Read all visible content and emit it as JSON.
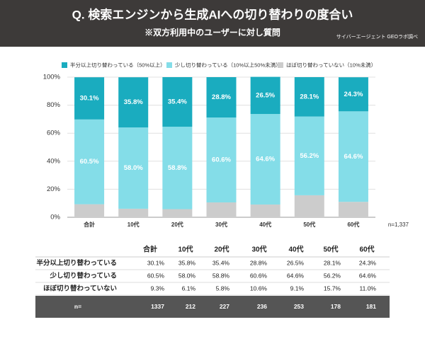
{
  "chart_data": {
    "type": "stacked_bar",
    "title": "Q. 検索エンジンから生成AIへの切り替わりの度合い",
    "subtitle": "※双方利用中のユーザーに対し質問",
    "source": "サイバーエージェント GEOラボ調べ",
    "note": "n=1,337",
    "categories": [
      "合計",
      "10代",
      "20代",
      "30代",
      "40代",
      "50代",
      "60代"
    ],
    "series": [
      {
        "name": "ほぼ切り替わっていない（10%未満）",
        "color": "#cccccc",
        "values": [
          9.3,
          6.1,
          5.8,
          10.6,
          9.1,
          15.7,
          11.0
        ],
        "value_labels": [
          "9.3%",
          "6.1%",
          "5.8%",
          "10.6%",
          "9.1%",
          "15.7%",
          "11.0%"
        ]
      },
      {
        "name": "少し切り替わっている（10%以上50%未満）",
        "color": "#84dde8",
        "values": [
          60.5,
          58.0,
          58.8,
          60.6,
          64.6,
          56.2,
          64.6
        ],
        "value_labels": [
          "60.5%",
          "58.0%",
          "58.8%",
          "60.6%",
          "64.6%",
          "56.2%",
          "64.6%"
        ]
      },
      {
        "name": "半分以上切り替わっている（50%以上）",
        "color": "#1aacbf",
        "values": [
          30.1,
          35.8,
          35.4,
          28.8,
          26.5,
          28.1,
          24.3
        ],
        "value_labels": [
          "30.1%",
          "35.8%",
          "35.4%",
          "28.8%",
          "26.5%",
          "28.1%",
          "24.3%"
        ]
      }
    ],
    "ylim": [
      0,
      100
    ],
    "yticks": [
      {
        "value": 0,
        "label": "0%"
      },
      {
        "value": 20,
        "label": "20%"
      },
      {
        "value": 40,
        "label": "40%"
      },
      {
        "value": 60,
        "label": "60%"
      },
      {
        "value": 80,
        "label": "80%"
      },
      {
        "value": 100,
        "label": "100%"
      }
    ],
    "grid": true
  },
  "table": {
    "row_labels": [
      "半分以上切り替わっている",
      "少し切り替わっている",
      "ほぼ切り替わっていない"
    ],
    "n_label": "n=",
    "n_values": [
      1337,
      212,
      227,
      236,
      253,
      178,
      181
    ]
  }
}
